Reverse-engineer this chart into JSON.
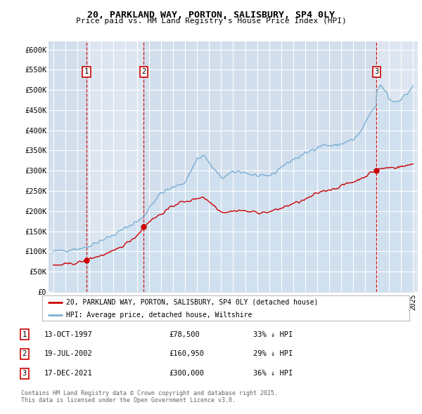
{
  "title": "20, PARKLAND WAY, PORTON, SALISBURY, SP4 0LY",
  "subtitle": "Price paid vs. HM Land Registry's House Price Index (HPI)",
  "legend_line1": "20, PARKLAND WAY, PORTON, SALISBURY, SP4 0LY (detached house)",
  "legend_line2": "HPI: Average price, detached house, Wiltshire",
  "footer_line1": "Contains HM Land Registry data © Crown copyright and database right 2025.",
  "footer_line2": "This data is licensed under the Open Government Licence v3.0.",
  "transactions": [
    {
      "label": "1",
      "date": "13-OCT-1997",
      "price": 78500,
      "price_str": "£78,500",
      "note": "33% ↓ HPI",
      "year": 1997.78
    },
    {
      "label": "2",
      "date": "19-JUL-2002",
      "price": 160950,
      "price_str": "£160,950",
      "note": "29% ↓ HPI",
      "year": 2002.54
    },
    {
      "label": "3",
      "date": "17-DEC-2021",
      "price": 300000,
      "price_str": "£300,000",
      "note": "36% ↓ HPI",
      "year": 2021.96
    }
  ],
  "ylim": [
    0,
    620000
  ],
  "xlim": [
    1994.6,
    2025.4
  ],
  "yticks": [
    0,
    50000,
    100000,
    150000,
    200000,
    250000,
    300000,
    350000,
    400000,
    450000,
    500000,
    550000,
    600000
  ],
  "ytick_labels": [
    "£0",
    "£50K",
    "£100K",
    "£150K",
    "£200K",
    "£250K",
    "£300K",
    "£350K",
    "£400K",
    "£450K",
    "£500K",
    "£550K",
    "£600K"
  ],
  "background_color": "#ffffff",
  "plot_bg_color": "#dde6f0",
  "grid_color": "#ffffff",
  "red_color": "#cc0000",
  "blue_color": "#7aafd4",
  "blue_fill_color": "#d0e0ef",
  "marker_color": "#cc0000",
  "dashed_color": "#cc0000"
}
